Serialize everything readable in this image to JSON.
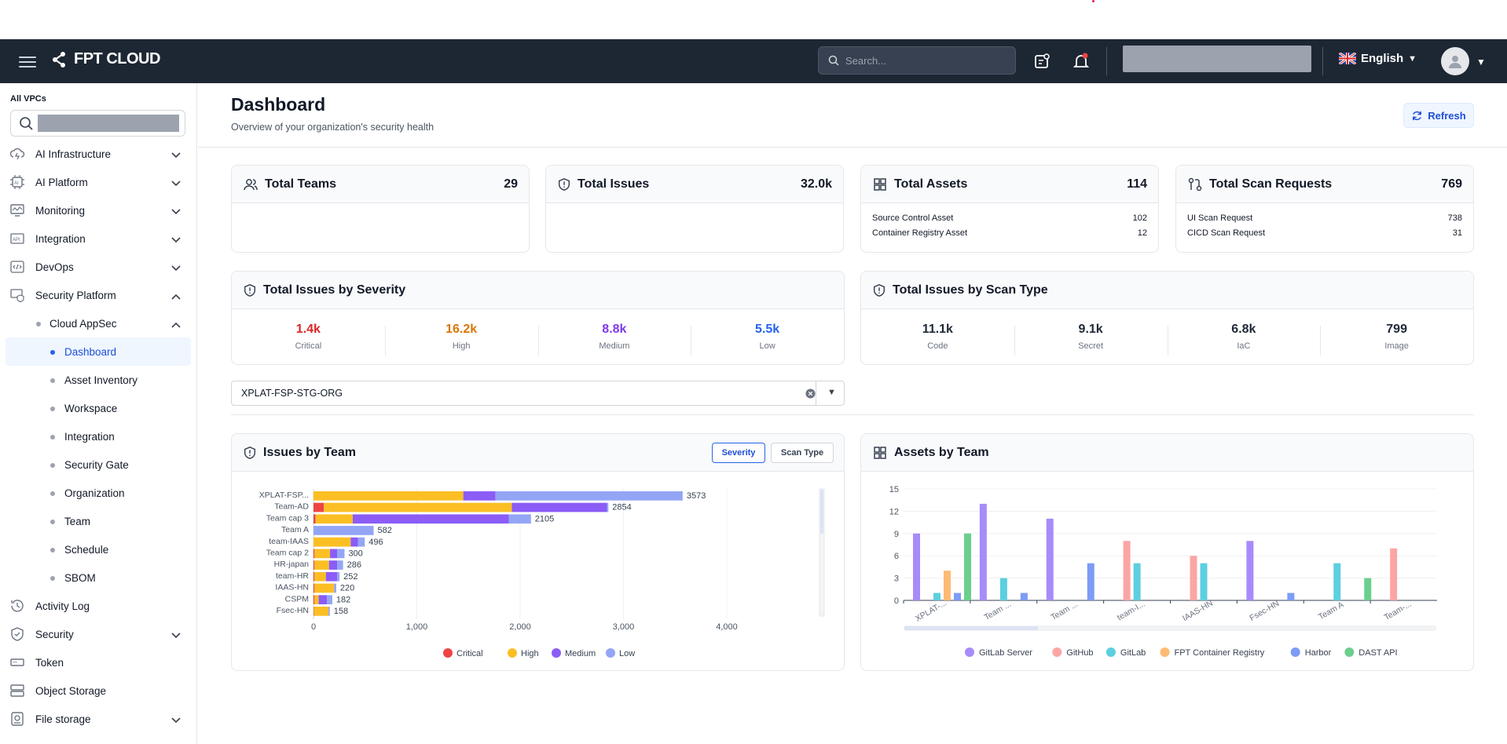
{
  "app": {
    "brand": "FPT CLOUD",
    "search_placeholder": "Search...",
    "language": "English"
  },
  "sidebar": {
    "vpc_label": "All VPCs",
    "items": [
      {
        "label": "AI Infrastructure",
        "icon": "ai-infrastructure-icon",
        "chevron": "down"
      },
      {
        "label": "AI Platform",
        "icon": "ai-platform-icon",
        "chevron": "down"
      },
      {
        "label": "Monitoring",
        "icon": "monitoring-icon",
        "chevron": "down"
      },
      {
        "label": "Integration",
        "icon": "api-icon",
        "chevron": "down"
      },
      {
        "label": "DevOps",
        "icon": "devops-icon",
        "chevron": "down"
      },
      {
        "label": "Security Platform",
        "icon": "security-platform-icon",
        "chevron": "up"
      },
      {
        "label": "Cloud AppSec",
        "chevron": "up"
      },
      {
        "label": "Dashboard",
        "active": true
      },
      {
        "label": "Asset Inventory"
      },
      {
        "label": "Workspace"
      },
      {
        "label": "Integration"
      },
      {
        "label": "Security Gate"
      },
      {
        "label": "Organization"
      },
      {
        "label": "Team"
      },
      {
        "label": "Schedule"
      },
      {
        "label": "SBOM"
      },
      {
        "label": "Activity Log",
        "icon": "activity-log-icon"
      },
      {
        "label": "Security",
        "icon": "security-icon",
        "chevron": "down"
      },
      {
        "label": "Token",
        "icon": "token-icon"
      },
      {
        "label": "Object Storage",
        "icon": "object-storage-icon"
      },
      {
        "label": "File storage",
        "icon": "file-storage-icon",
        "chevron": "down"
      }
    ]
  },
  "page": {
    "title": "Dashboard",
    "subtitle": "Overview of your organization's security health",
    "refresh_label": "Refresh"
  },
  "stats": {
    "teams": {
      "label": "Total Teams",
      "value": "29"
    },
    "issues": {
      "label": "Total Issues",
      "value": "32.0k"
    },
    "assets": {
      "label": "Total Assets",
      "value": "114",
      "rows": [
        {
          "k": "Source Control Asset",
          "v": "102"
        },
        {
          "k": "Container Registry Asset",
          "v": "12"
        }
      ]
    },
    "scans": {
      "label": "Total Scan Requests",
      "value": "769",
      "rows": [
        {
          "k": "UI Scan Request",
          "v": "738"
        },
        {
          "k": "CICD Scan Request",
          "v": "31"
        }
      ]
    }
  },
  "severity": {
    "title": "Total Issues by Severity",
    "items": [
      {
        "value": "1.4k",
        "label": "Critical",
        "color": "#dc2626"
      },
      {
        "value": "16.2k",
        "label": "High",
        "color": "#d97706"
      },
      {
        "value": "8.8k",
        "label": "Medium",
        "color": "#7c3aed"
      },
      {
        "value": "5.5k",
        "label": "Low",
        "color": "#2563eb"
      }
    ]
  },
  "scantype": {
    "title": "Total Issues by Scan Type",
    "items": [
      {
        "value": "11.1k",
        "label": "Code"
      },
      {
        "value": "9.1k",
        "label": "Secret"
      },
      {
        "value": "6.8k",
        "label": "IaC"
      },
      {
        "value": "799",
        "label": "Image"
      }
    ]
  },
  "org_select": {
    "value": "XPLAT-FSP-STG-ORG"
  },
  "issues_by_team": {
    "title": "Issues by Team",
    "toggle": {
      "severity": "Severity",
      "scan_type": "Scan Type"
    }
  },
  "assets_by_team": {
    "title": "Assets by Team"
  },
  "chart_data": [
    {
      "type": "bar",
      "orientation": "horizontal",
      "stacked": true,
      "categories": [
        "XPLAT-FSP...",
        "Team-AD",
        "Team cap 3",
        "Team A",
        "team-IAAS",
        "Team cap 2",
        "HR-japan",
        "team-HR",
        "IAAS-HN",
        "CSPM",
        "Fsec-HN"
      ],
      "totals": [
        3573,
        2854,
        2105,
        582,
        496,
        300,
        286,
        252,
        220,
        182,
        158
      ],
      "series": [
        {
          "name": "Critical",
          "color": "#ef4444",
          "values": [
            0,
            100,
            20,
            0,
            0,
            10,
            10,
            10,
            10,
            10,
            5
          ]
        },
        {
          "name": "High",
          "color": "#fbbf24",
          "values": [
            1450,
            1820,
            360,
            0,
            360,
            150,
            140,
            110,
            190,
            40,
            140
          ]
        },
        {
          "name": "Medium",
          "color": "#8b5cf6",
          "values": [
            310,
            920,
            1510,
            0,
            70,
            70,
            80,
            110,
            0,
            80,
            0
          ]
        },
        {
          "name": "Low",
          "color": "#93a5f5",
          "values": [
            1813,
            14,
            215,
            582,
            66,
            70,
            56,
            22,
            20,
            52,
            13
          ]
        }
      ],
      "xticks": [
        "0",
        "1,000",
        "2,000",
        "3,000",
        "4,000"
      ],
      "xlim": [
        0,
        4000
      ],
      "legend_position": "bottom"
    },
    {
      "type": "bar",
      "categories": [
        "XPLAT-...",
        "Team ...",
        "Team ...",
        "team-I...",
        "IAAS-HN",
        "Fsec-HN",
        "Team A",
        "Team-..."
      ],
      "series": [
        {
          "name": "GitLab Server",
          "color": "#a78bfa",
          "values": [
            9,
            13,
            11,
            0,
            0,
            8,
            0,
            0
          ]
        },
        {
          "name": "GitHub",
          "color": "#fca5a5",
          "values": [
            0,
            0,
            0,
            8,
            6,
            0,
            0,
            7
          ]
        },
        {
          "name": "GitLab",
          "color": "#5ccfe0",
          "values": [
            1,
            3,
            0,
            5,
            5,
            0,
            5,
            0
          ]
        },
        {
          "name": "FPT Container Registry",
          "color": "#fdba74",
          "values": [
            4,
            0,
            0,
            0,
            0,
            0,
            0,
            0
          ]
        },
        {
          "name": "Harbor",
          "color": "#7c9cf5",
          "values": [
            1,
            1,
            5,
            0,
            0,
            1,
            0,
            0
          ]
        },
        {
          "name": "DAST API",
          "color": "#6ccf8e",
          "values": [
            9,
            0,
            0,
            0,
            0,
            0,
            3,
            0
          ]
        }
      ],
      "yticks": [
        "0",
        "3",
        "6",
        "9",
        "12",
        "15"
      ],
      "ylim": [
        0,
        15
      ],
      "legend_position": "bottom"
    }
  ]
}
